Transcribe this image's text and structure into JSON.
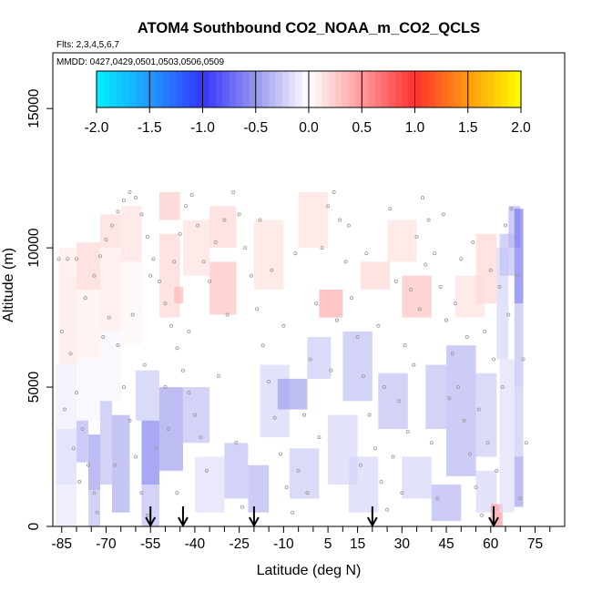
{
  "chart_data": {
    "type": "heatmap",
    "title": "ATOM4 Southbound CO2_NOAA_m_CO2_QCLS",
    "flights_text": "Flts: 2,3,4,5,6,7",
    "mmdd_text": "MMDD: 0427,0429,0501,0503,0506,0509",
    "xlabel": "Latitude (deg N)",
    "ylabel": "Altitude (m)",
    "xlim": [
      -88,
      85
    ],
    "ylim": [
      0,
      17000
    ],
    "x_ticks": [
      -85,
      -70,
      -55,
      -40,
      -25,
      -10,
      5,
      15,
      30,
      45,
      60,
      75
    ],
    "x_minor_ticks": [
      -80,
      -75,
      -65,
      -60,
      -50,
      -45,
      -35,
      -30,
      -20,
      -15,
      -5,
      0,
      10,
      20,
      25,
      35,
      40,
      50,
      55,
      65,
      70,
      80
    ],
    "y_ticks": [
      0,
      5000,
      10000,
      15000
    ],
    "colorbar": {
      "range": [
        -2.0,
        2.0
      ],
      "tick_values": [
        -2.0,
        -1.5,
        -1.0,
        -0.5,
        0.0,
        0.5,
        1.0,
        1.5,
        2.0
      ],
      "tick_labels": [
        "-2.0",
        "-1.5",
        "-1.0",
        "-0.5",
        "0.0",
        "0.5",
        "1.0",
        "1.5",
        "2.0"
      ],
      "stops": [
        {
          "v": -2.0,
          "color": "#00f0ff"
        },
        {
          "v": -1.5,
          "color": "#1f9aff"
        },
        {
          "v": -1.0,
          "color": "#3535ff"
        },
        {
          "v": -0.5,
          "color": "#9696ee"
        },
        {
          "v": 0.0,
          "color": "#ffffff"
        },
        {
          "v": 0.5,
          "color": "#ff9a9a"
        },
        {
          "v": 1.0,
          "color": "#ff3030"
        },
        {
          "v": 1.5,
          "color": "#ff9a10"
        },
        {
          "v": 2.0,
          "color": "#ffff00"
        }
      ]
    },
    "arrow_latitudes": [
      -55,
      -44,
      -20,
      20,
      61
    ],
    "cells": [
      {
        "lat": [
          -86,
          -80
        ],
        "alt": [
          9000,
          10000
        ],
        "v": 0.1
      },
      {
        "lat": [
          -86,
          -80
        ],
        "alt": [
          5800,
          9000
        ],
        "v": 0.12
      },
      {
        "lat": [
          -87,
          -80
        ],
        "alt": [
          3500,
          5800
        ],
        "v": -0.08
      },
      {
        "lat": [
          -87,
          -80
        ],
        "alt": [
          1500,
          3500
        ],
        "v": -0.18
      },
      {
        "lat": [
          -87,
          -80
        ],
        "alt": [
          0,
          1500
        ],
        "v": -0.1
      },
      {
        "lat": [
          -80,
          -72
        ],
        "alt": [
          8500,
          10200
        ],
        "v": 0.2
      },
      {
        "lat": [
          -80,
          -72
        ],
        "alt": [
          6000,
          8500
        ],
        "v": 0.08
      },
      {
        "lat": [
          -80,
          -72
        ],
        "alt": [
          3800,
          6000
        ],
        "v": -0.05
      },
      {
        "lat": [
          -80,
          -76
        ],
        "alt": [
          2300,
          3800
        ],
        "v": -0.35
      },
      {
        "lat": [
          -76,
          -72
        ],
        "alt": [
          1300,
          3300
        ],
        "v": -0.45
      },
      {
        "lat": [
          -76,
          -72
        ],
        "alt": [
          0,
          1300
        ],
        "v": -0.3
      },
      {
        "lat": [
          -72,
          -65
        ],
        "alt": [
          10000,
          11200
        ],
        "v": 0.18
      },
      {
        "lat": [
          -72,
          -65
        ],
        "alt": [
          7000,
          10000
        ],
        "v": 0.1
      },
      {
        "lat": [
          -72,
          -65
        ],
        "alt": [
          4500,
          7000
        ],
        "v": -0.05
      },
      {
        "lat": [
          -72,
          -68
        ],
        "alt": [
          1500,
          4500
        ],
        "v": -0.3
      },
      {
        "lat": [
          -68,
          -62
        ],
        "alt": [
          500,
          4000
        ],
        "v": -0.4
      },
      {
        "lat": [
          -65,
          -58
        ],
        "alt": [
          9500,
          11500
        ],
        "v": 0.15
      },
      {
        "lat": [
          -65,
          -58
        ],
        "alt": [
          6500,
          9500
        ],
        "v": 0.05
      },
      {
        "lat": [
          -60,
          -52
        ],
        "alt": [
          3800,
          5600
        ],
        "v": -0.25
      },
      {
        "lat": [
          -58,
          -52
        ],
        "alt": [
          1500,
          3800
        ],
        "v": -0.6
      },
      {
        "lat": [
          -58,
          -52
        ],
        "alt": [
          0,
          1500
        ],
        "v": -0.3
      },
      {
        "lat": [
          -52,
          -45
        ],
        "alt": [
          11000,
          12000
        ],
        "v": 0.25
      },
      {
        "lat": [
          -52,
          -45
        ],
        "alt": [
          7500,
          10500
        ],
        "v": 0.2
      },
      {
        "lat": [
          -52,
          -44
        ],
        "alt": [
          2000,
          5000
        ],
        "v": -0.45
      },
      {
        "lat": [
          -47,
          -44
        ],
        "alt": [
          8000,
          8600
        ],
        "v": 0.35
      },
      {
        "lat": [
          -44,
          -35
        ],
        "alt": [
          9000,
          11000
        ],
        "v": 0.15
      },
      {
        "lat": [
          -44,
          -35
        ],
        "alt": [
          3000,
          5000
        ],
        "v": -0.3
      },
      {
        "lat": [
          -40,
          -30
        ],
        "alt": [
          500,
          2500
        ],
        "v": -0.15
      },
      {
        "lat": [
          -35,
          -26
        ],
        "alt": [
          10000,
          11500
        ],
        "v": 0.2
      },
      {
        "lat": [
          -35,
          -26
        ],
        "alt": [
          7600,
          9500
        ],
        "v": 0.3
      },
      {
        "lat": [
          -30,
          -22
        ],
        "alt": [
          1000,
          3000
        ],
        "v": -0.3
      },
      {
        "lat": [
          -22,
          -15
        ],
        "alt": [
          500,
          2200
        ],
        "v": -0.35
      },
      {
        "lat": [
          -20,
          -10
        ],
        "alt": [
          8500,
          11000
        ],
        "v": 0.15
      },
      {
        "lat": [
          -18,
          -8
        ],
        "alt": [
          3200,
          5800
        ],
        "v": -0.2
      },
      {
        "lat": [
          -12,
          -2
        ],
        "alt": [
          4200,
          5300
        ],
        "v": -0.45
      },
      {
        "lat": [
          -8,
          2
        ],
        "alt": [
          1000,
          2800
        ],
        "v": -0.25
      },
      {
        "lat": [
          -5,
          5
        ],
        "alt": [
          10000,
          12000
        ],
        "v": 0.15
      },
      {
        "lat": [
          -2,
          6
        ],
        "alt": [
          5300,
          6800
        ],
        "v": -0.25
      },
      {
        "lat": [
          2,
          10
        ],
        "alt": [
          7500,
          8500
        ],
        "v": 0.4
      },
      {
        "lat": [
          5,
          15
        ],
        "alt": [
          1500,
          4000
        ],
        "v": -0.2
      },
      {
        "lat": [
          10,
          20
        ],
        "alt": [
          4500,
          7000
        ],
        "v": -0.3
      },
      {
        "lat": [
          12,
          22
        ],
        "alt": [
          500,
          2500
        ],
        "v": -0.2
      },
      {
        "lat": [
          16,
          26
        ],
        "alt": [
          8500,
          9500
        ],
        "v": 0.2
      },
      {
        "lat": [
          25,
          35
        ],
        "alt": [
          9500,
          11000
        ],
        "v": 0.15
      },
      {
        "lat": [
          22,
          32
        ],
        "alt": [
          3500,
          5500
        ],
        "v": -0.3
      },
      {
        "lat": [
          30,
          40
        ],
        "alt": [
          7500,
          9000
        ],
        "v": 0.3
      },
      {
        "lat": [
          30,
          40
        ],
        "alt": [
          1000,
          2500
        ],
        "v": -0.2
      },
      {
        "lat": [
          38,
          45
        ],
        "alt": [
          3500,
          5800
        ],
        "v": -0.3
      },
      {
        "lat": [
          45,
          55
        ],
        "alt": [
          1800,
          6500
        ],
        "v": -0.35
      },
      {
        "lat": [
          40,
          50
        ],
        "alt": [
          200,
          1500
        ],
        "v": -0.35
      },
      {
        "lat": [
          48,
          58
        ],
        "alt": [
          7500,
          9000
        ],
        "v": 0.15
      },
      {
        "lat": [
          55,
          62
        ],
        "alt": [
          8000,
          10500
        ],
        "v": 0.2
      },
      {
        "lat": [
          55,
          62
        ],
        "alt": [
          2500,
          5500
        ],
        "v": -0.25
      },
      {
        "lat": [
          55,
          62
        ],
        "alt": [
          500,
          2000
        ],
        "v": -0.2
      },
      {
        "lat": [
          60,
          64
        ],
        "alt": [
          0,
          800
        ],
        "v": 0.5
      },
      {
        "lat": [
          62,
          66
        ],
        "alt": [
          6000,
          10000
        ],
        "v": -0.2
      },
      {
        "lat": [
          63,
          68
        ],
        "alt": [
          9000,
          10500
        ],
        "v": -0.3
      },
      {
        "lat": [
          63,
          68
        ],
        "alt": [
          500,
          6000
        ],
        "v": -0.15
      },
      {
        "lat": [
          66,
          70
        ],
        "alt": [
          10000,
          11500
        ],
        "v": -0.35
      },
      {
        "lat": [
          68,
          71
        ],
        "alt": [
          8000,
          11400
        ],
        "v": -0.65
      },
      {
        "lat": [
          68,
          71
        ],
        "alt": [
          5000,
          8000
        ],
        "v": -0.3
      },
      {
        "lat": [
          68,
          71
        ],
        "alt": [
          2500,
          5000
        ],
        "v": -0.25
      },
      {
        "lat": [
          68,
          71
        ],
        "alt": [
          700,
          2500
        ],
        "v": -0.45
      }
    ],
    "obs_points": [
      [
        -86,
        9600
      ],
      [
        -83,
        9600
      ],
      [
        -80,
        9600
      ],
      [
        -85,
        7000
      ],
      [
        -82,
        6200
      ],
      [
        -80,
        4800
      ],
      [
        -78,
        3500
      ],
      [
        -76,
        2200
      ],
      [
        -74,
        1200
      ],
      [
        -73,
        500
      ],
      [
        -77,
        8200
      ],
      [
        -74,
        9000
      ],
      [
        -72,
        9700
      ],
      [
        -70,
        10300
      ],
      [
        -68,
        10800
      ],
      [
        -66,
        11300
      ],
      [
        -64,
        11700
      ],
      [
        -62,
        12000
      ],
      [
        -60,
        11800
      ],
      [
        -58,
        11200
      ],
      [
        -56,
        10400
      ],
      [
        -54,
        9600
      ],
      [
        -52,
        8800
      ],
      [
        -50,
        8000
      ],
      [
        -48,
        7200
      ],
      [
        -46,
        6400
      ],
      [
        -44,
        5600
      ],
      [
        -42,
        4800
      ],
      [
        -40,
        4000
      ],
      [
        -38,
        3200
      ],
      [
        -69,
        7500
      ],
      [
        -66,
        6500
      ],
      [
        -64,
        5000
      ],
      [
        -62,
        3800
      ],
      [
        -60,
        2500
      ],
      [
        -58,
        1200
      ],
      [
        -56,
        400
      ],
      [
        -53,
        2800
      ],
      [
        -50,
        5000
      ],
      [
        -47,
        9500
      ],
      [
        -45,
        10500
      ],
      [
        -43,
        11500
      ],
      [
        -41,
        11900
      ],
      [
        -39,
        10800
      ],
      [
        -37,
        9500
      ],
      [
        -35,
        8800
      ],
      [
        -33,
        10200
      ],
      [
        -30,
        11000
      ],
      [
        -27,
        12000
      ],
      [
        -25,
        11200
      ],
      [
        -23,
        10000
      ],
      [
        -21,
        9000
      ],
      [
        -19,
        7800
      ],
      [
        -17,
        6500
      ],
      [
        -15,
        5200
      ],
      [
        -13,
        3900
      ],
      [
        -11,
        2600
      ],
      [
        -9,
        1400
      ],
      [
        -7,
        500
      ],
      [
        -5,
        2000
      ],
      [
        -3,
        4000
      ],
      [
        -1,
        6000
      ],
      [
        1,
        8000
      ],
      [
        3,
        10000
      ],
      [
        5,
        11500
      ],
      [
        7,
        12000
      ],
      [
        9,
        11000
      ],
      [
        11,
        9500
      ],
      [
        13,
        8200
      ],
      [
        15,
        6800
      ],
      [
        17,
        5400
      ],
      [
        19,
        4000
      ],
      [
        21,
        2800
      ],
      [
        23,
        1600
      ],
      [
        25,
        600
      ],
      [
        27,
        2500
      ],
      [
        29,
        4500
      ],
      [
        31,
        6500
      ],
      [
        33,
        8500
      ],
      [
        35,
        10400
      ],
      [
        37,
        11800
      ],
      [
        39,
        11000
      ],
      [
        41,
        9800
      ],
      [
        43,
        8600
      ],
      [
        45,
        7400
      ],
      [
        47,
        6200
      ],
      [
        49,
        5000
      ],
      [
        51,
        3800
      ],
      [
        53,
        2600
      ],
      [
        55,
        1400
      ],
      [
        57,
        400
      ],
      [
        59,
        3000
      ],
      [
        61,
        6000
      ],
      [
        63,
        8600
      ],
      [
        65,
        10800
      ],
      [
        67,
        11400
      ],
      [
        69,
        9000
      ],
      [
        71,
        6000
      ],
      [
        72,
        3000
      ],
      [
        70,
        1000
      ],
      [
        -84,
        4200
      ],
      [
        -81,
        2800
      ],
      [
        -79,
        1600
      ],
      [
        -71,
        6800
      ],
      [
        -67,
        2200
      ],
      [
        -61,
        7600
      ],
      [
        -57,
        5800
      ],
      [
        -55,
        9000
      ],
      [
        -49,
        3500
      ],
      [
        -46,
        1200
      ],
      [
        -42,
        7000
      ],
      [
        -36,
        2000
      ],
      [
        -32,
        5400
      ],
      [
        -29,
        7600
      ],
      [
        -26,
        3000
      ],
      [
        -24,
        700
      ],
      [
        -18,
        11000
      ],
      [
        -14,
        9200
      ],
      [
        -10,
        7200
      ],
      [
        -6,
        9800
      ],
      [
        -2,
        1200
      ],
      [
        2,
        3200
      ],
      [
        6,
        5600
      ],
      [
        8,
        7400
      ],
      [
        12,
        10800
      ],
      [
        16,
        2200
      ],
      [
        18,
        9800
      ],
      [
        22,
        7200
      ],
      [
        24,
        5000
      ],
      [
        26,
        11400
      ],
      [
        28,
        8800
      ],
      [
        30,
        1200
      ],
      [
        32,
        3400
      ],
      [
        34,
        5800
      ],
      [
        36,
        7800
      ],
      [
        38,
        9400
      ],
      [
        40,
        3000
      ],
      [
        42,
        1000
      ],
      [
        44,
        11200
      ],
      [
        46,
        4600
      ],
      [
        48,
        8000
      ],
      [
        50,
        9600
      ],
      [
        52,
        6800
      ],
      [
        54,
        10200
      ],
      [
        56,
        4200
      ],
      [
        58,
        7000
      ],
      [
        60,
        9200
      ],
      [
        62,
        2000
      ],
      [
        64,
        5000
      ],
      [
        66,
        7600
      ]
    ]
  }
}
